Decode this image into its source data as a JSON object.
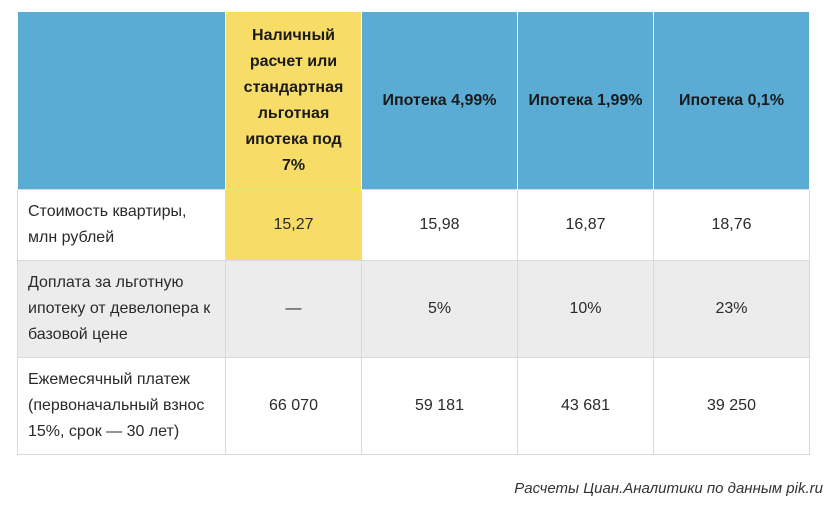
{
  "table": {
    "header": {
      "corner": "",
      "columns": [
        "Наличный расчет или стандартная льготная ипотека под 7%",
        "Ипотека 4,99%",
        "Ипотека 1,99%",
        "Ипотека 0,1%"
      ]
    },
    "rows": [
      {
        "label": "Стоимость квартиры, млн рублей",
        "values": [
          "15,27",
          "15,98",
          "16,87",
          "18,76"
        ]
      },
      {
        "label": "Доплата за льготную ипотеку от девелопера к базовой цене",
        "values": [
          "—",
          "5%",
          "10%",
          "23%"
        ]
      },
      {
        "label": "Ежемесячный платеж (первоначальный взнос 15%, срок — 30 лет)",
        "values": [
          "66 070",
          "59 181",
          "43 681",
          "39 250"
        ]
      }
    ],
    "highlight_color": "#f8dc68",
    "header_color": "#5aacd5",
    "alt_row_color": "#ececec"
  },
  "source": "Расчеты Циан.Аналитики по данным pik.ru"
}
